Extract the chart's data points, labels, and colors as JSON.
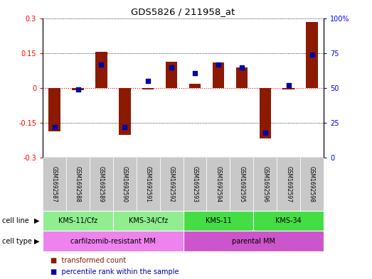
{
  "title": "GDS5826 / 211958_at",
  "samples": [
    "GSM1692587",
    "GSM1692588",
    "GSM1692589",
    "GSM1692590",
    "GSM1692591",
    "GSM1692592",
    "GSM1692593",
    "GSM1692594",
    "GSM1692595",
    "GSM1692596",
    "GSM1692597",
    "GSM1692598"
  ],
  "transformed_count": [
    -0.185,
    -0.01,
    0.155,
    -0.2,
    -0.005,
    0.115,
    0.02,
    0.11,
    0.09,
    -0.215,
    -0.005,
    0.285
  ],
  "percentile_rank": [
    22,
    49,
    67,
    22,
    55,
    65,
    61,
    67,
    65,
    18,
    52,
    74
  ],
  "bar_color": "#8B1A00",
  "dot_color": "#0000AA",
  "cell_line_groups": [
    {
      "label": "KMS-11/Cfz",
      "start": 0,
      "end": 3,
      "color": "#90EE90"
    },
    {
      "label": "KMS-34/Cfz",
      "start": 3,
      "end": 6,
      "color": "#90EE90"
    },
    {
      "label": "KMS-11",
      "start": 6,
      "end": 9,
      "color": "#44DD44"
    },
    {
      "label": "KMS-34",
      "start": 9,
      "end": 12,
      "color": "#44DD44"
    }
  ],
  "cell_type_groups": [
    {
      "label": "carfilzomib-resistant MM",
      "start": 0,
      "end": 6,
      "color": "#EE82EE"
    },
    {
      "label": "parental MM",
      "start": 6,
      "end": 12,
      "color": "#CC55CC"
    }
  ],
  "ylim_left": [
    -0.3,
    0.3
  ],
  "yticks_left": [
    -0.3,
    -0.15,
    0.0,
    0.15,
    0.3
  ],
  "ytick_labels_left": [
    "-0.3",
    "-0.15",
    "0",
    "0.15",
    "0.3"
  ],
  "ylim_right": [
    0,
    100
  ],
  "yticks_right": [
    0,
    25,
    50,
    75,
    100
  ],
  "ytick_labels_right": [
    "0",
    "25",
    "50",
    "75",
    "100%"
  ],
  "legend_items": [
    {
      "label": "transformed count",
      "color": "#8B1A00"
    },
    {
      "label": "percentile rank within the sample",
      "color": "#0000AA"
    }
  ],
  "background_color": "#ffffff",
  "sample_box_color": "#C8C8C8",
  "figsize": [
    5.23,
    3.93
  ],
  "dpi": 100
}
